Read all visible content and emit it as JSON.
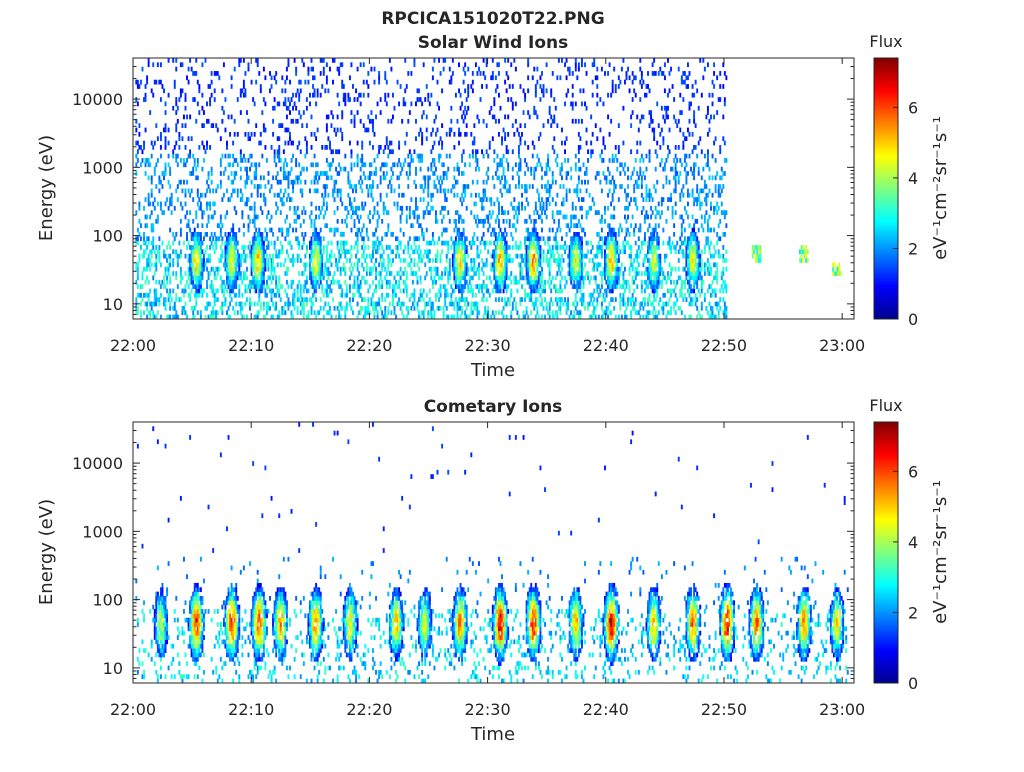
{
  "figure": {
    "filename_title": "RPCICA151020T22.PNG"
  },
  "colorbar": {
    "title": "Flux",
    "label": "eV⁻¹cm⁻²sr⁻¹s⁻¹",
    "range": [
      0,
      7.4
    ],
    "ticks": [
      "0",
      "2",
      "4",
      "6"
    ],
    "colormap": "jet"
  },
  "chart_data": [
    {
      "type": "heatmap",
      "title": "Solar Wind Ions",
      "xlabel": "Time",
      "ylabel": "Energy (eV)",
      "x_ticks": [
        "22:00",
        "22:10",
        "22:20",
        "22:30",
        "22:40",
        "22:50",
        "23:00"
      ],
      "xlim_minutes": [
        0,
        61
      ],
      "y_ticks": [
        "10",
        "100",
        "1000",
        "10000"
      ],
      "ylim": [
        6,
        40000
      ],
      "yscale": "log",
      "data_end_minute": 50.2,
      "after_gap_clusters": [
        {
          "minute": 52.7,
          "energy_low": 40,
          "energy_high": 65
        },
        {
          "minute": 56.7,
          "energy_low": 40,
          "energy_high": 70
        },
        {
          "minute": 59.5,
          "energy_low": 25,
          "energy_high": 35
        }
      ],
      "bursts": [
        {
          "minute": 5.3,
          "peak_flux": 5.0
        },
        {
          "minute": 8.3,
          "peak_flux": 4.8
        },
        {
          "minute": 10.5,
          "peak_flux": 5.2
        },
        {
          "minute": 15.4,
          "peak_flux": 4.6
        },
        {
          "minute": 27.6,
          "peak_flux": 4.8
        },
        {
          "minute": 31.0,
          "peak_flux": 5.3
        },
        {
          "minute": 33.8,
          "peak_flux": 5.6
        },
        {
          "minute": 37.4,
          "peak_flux": 4.6
        },
        {
          "minute": 40.4,
          "peak_flux": 5.3
        },
        {
          "minute": 44.0,
          "peak_flux": 4.5
        },
        {
          "minute": 47.3,
          "peak_flux": 4.6
        }
      ]
    },
    {
      "type": "heatmap",
      "title": "Cometary Ions",
      "xlabel": "Time",
      "ylabel": "Energy (eV)",
      "x_ticks": [
        "22:00",
        "22:10",
        "22:20",
        "22:30",
        "22:40",
        "22:50",
        "23:00"
      ],
      "xlim_minutes": [
        0,
        61
      ],
      "y_ticks": [
        "10",
        "100",
        "1000",
        "10000"
      ],
      "ylim": [
        6,
        40000
      ],
      "yscale": "log",
      "bursts": [
        {
          "minute": 2.3,
          "peak_flux": 4.2
        },
        {
          "minute": 5.3,
          "peak_flux": 6.3
        },
        {
          "minute": 8.3,
          "peak_flux": 6.4
        },
        {
          "minute": 10.6,
          "peak_flux": 6.2
        },
        {
          "minute": 12.4,
          "peak_flux": 5.5
        },
        {
          "minute": 15.4,
          "peak_flux": 5.6
        },
        {
          "minute": 18.3,
          "peak_flux": 4.8
        },
        {
          "minute": 22.2,
          "peak_flux": 5.0
        },
        {
          "minute": 24.6,
          "peak_flux": 4.5
        },
        {
          "minute": 27.6,
          "peak_flux": 5.6
        },
        {
          "minute": 31.0,
          "peak_flux": 6.8
        },
        {
          "minute": 33.8,
          "peak_flux": 6.4
        },
        {
          "minute": 37.4,
          "peak_flux": 5.2
        },
        {
          "minute": 40.4,
          "peak_flux": 6.9
        },
        {
          "minute": 44.0,
          "peak_flux": 5.2
        },
        {
          "minute": 47.3,
          "peak_flux": 5.8
        },
        {
          "minute": 50.2,
          "peak_flux": 6.5
        },
        {
          "minute": 52.7,
          "peak_flux": 5.8
        },
        {
          "minute": 56.7,
          "peak_flux": 5.6
        },
        {
          "minute": 59.5,
          "peak_flux": 4.8
        }
      ]
    }
  ]
}
